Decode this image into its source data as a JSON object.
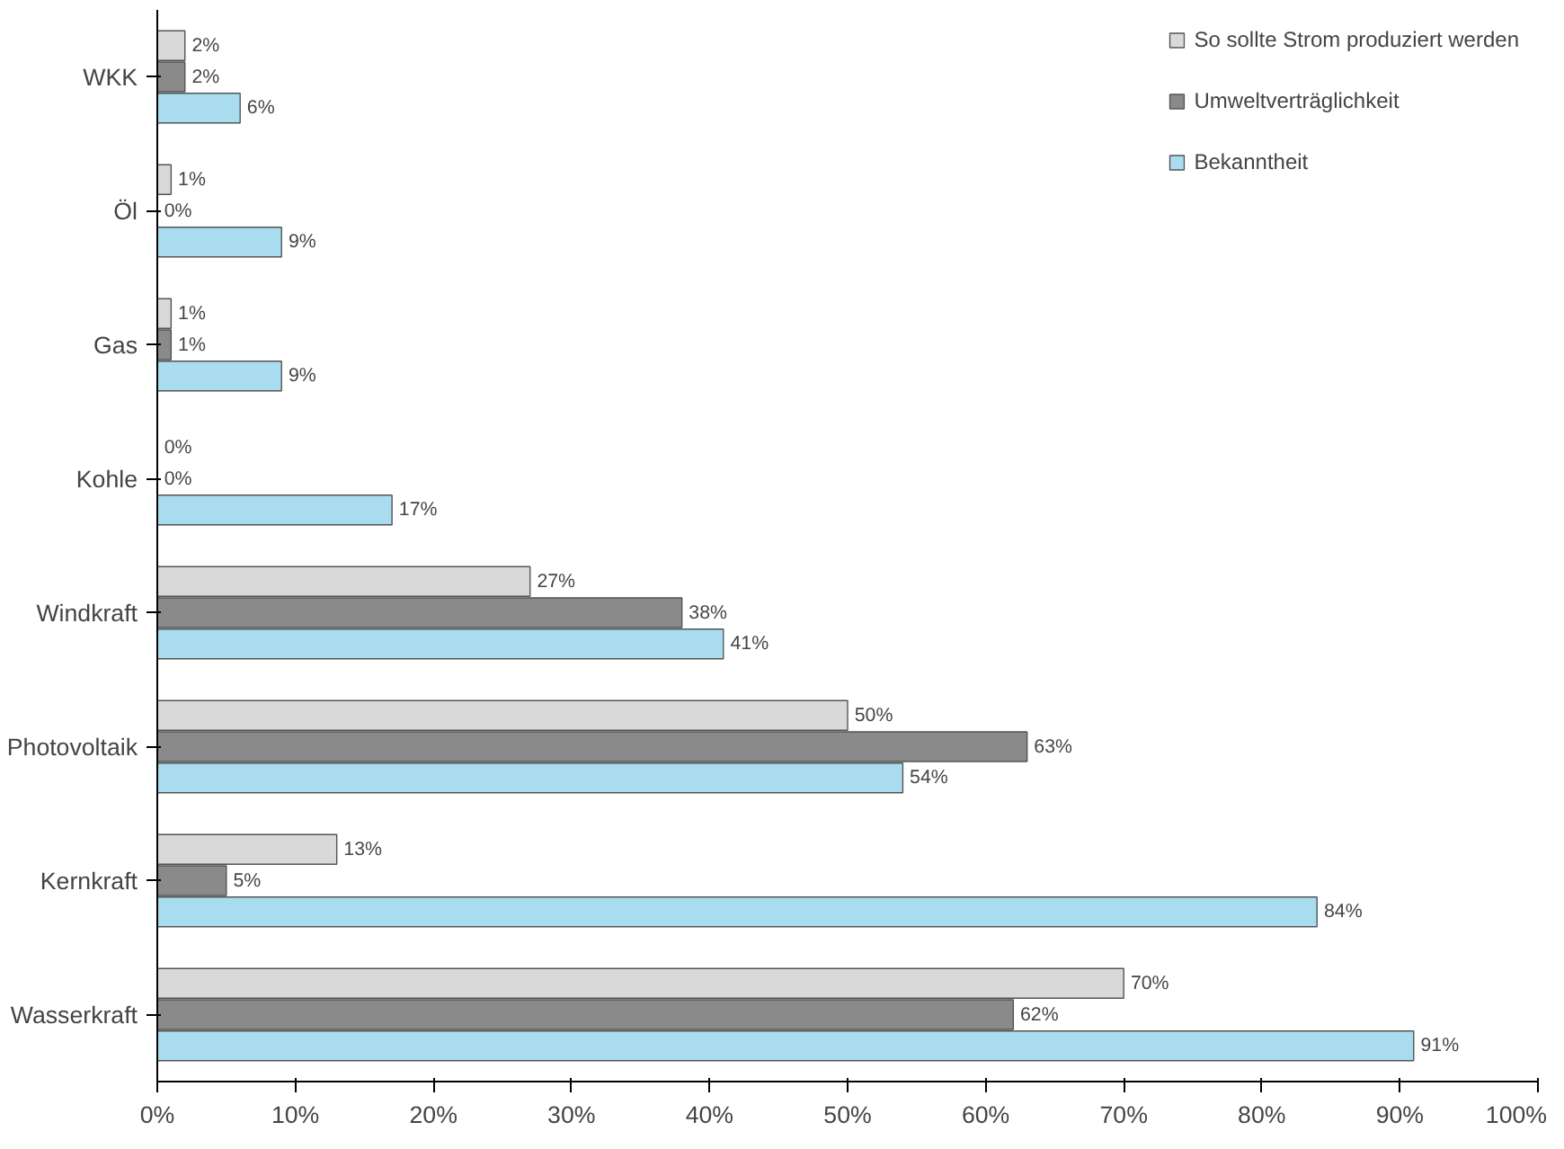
{
  "chart_data": {
    "type": "bar",
    "orientation": "horizontal",
    "categories": [
      "WKK",
      "Öl",
      "Gas",
      "Kohle",
      "Windkraft",
      "Photovoltaik",
      "Kernkraft",
      "Wasserkraft"
    ],
    "series": [
      {
        "name": "So sollte Strom produziert werden",
        "color": "#d9d9d9",
        "values": [
          2,
          1,
          1,
          0,
          27,
          50,
          13,
          70
        ],
        "value_labels": [
          "2%",
          "1%",
          "1%",
          "0%",
          "27%",
          "50%",
          "13%",
          "70%"
        ]
      },
      {
        "name": "Umweltverträglichkeit",
        "color": "#8a8a8a",
        "values": [
          2,
          0,
          1,
          0,
          38,
          63,
          5,
          62
        ],
        "value_labels": [
          "2%",
          "0%",
          "1%",
          "0%",
          "38%",
          "63%",
          "5%",
          "62%"
        ]
      },
      {
        "name": "Bekanntheit",
        "color": "#a9dcef",
        "values": [
          6,
          9,
          9,
          17,
          41,
          54,
          84,
          91
        ],
        "value_labels": [
          "6%",
          "9%",
          "9%",
          "17%",
          "41%",
          "54%",
          "84%",
          "91%"
        ]
      }
    ],
    "xlim": [
      0,
      100
    ],
    "xticks": [
      {
        "value": 0,
        "label": "0%"
      },
      {
        "value": 10,
        "label": "10%"
      },
      {
        "value": 20,
        "label": "20%"
      },
      {
        "value": 30,
        "label": "30%"
      },
      {
        "value": 40,
        "label": "40%"
      },
      {
        "value": 50,
        "label": "50%"
      },
      {
        "value": 60,
        "label": "60%"
      },
      {
        "value": 70,
        "label": "70%"
      },
      {
        "value": 80,
        "label": "80%"
      },
      {
        "value": 90,
        "label": "90%"
      },
      {
        "value": 100,
        "label": "100%"
      }
    ],
    "legend": "top right",
    "grid": false
  }
}
